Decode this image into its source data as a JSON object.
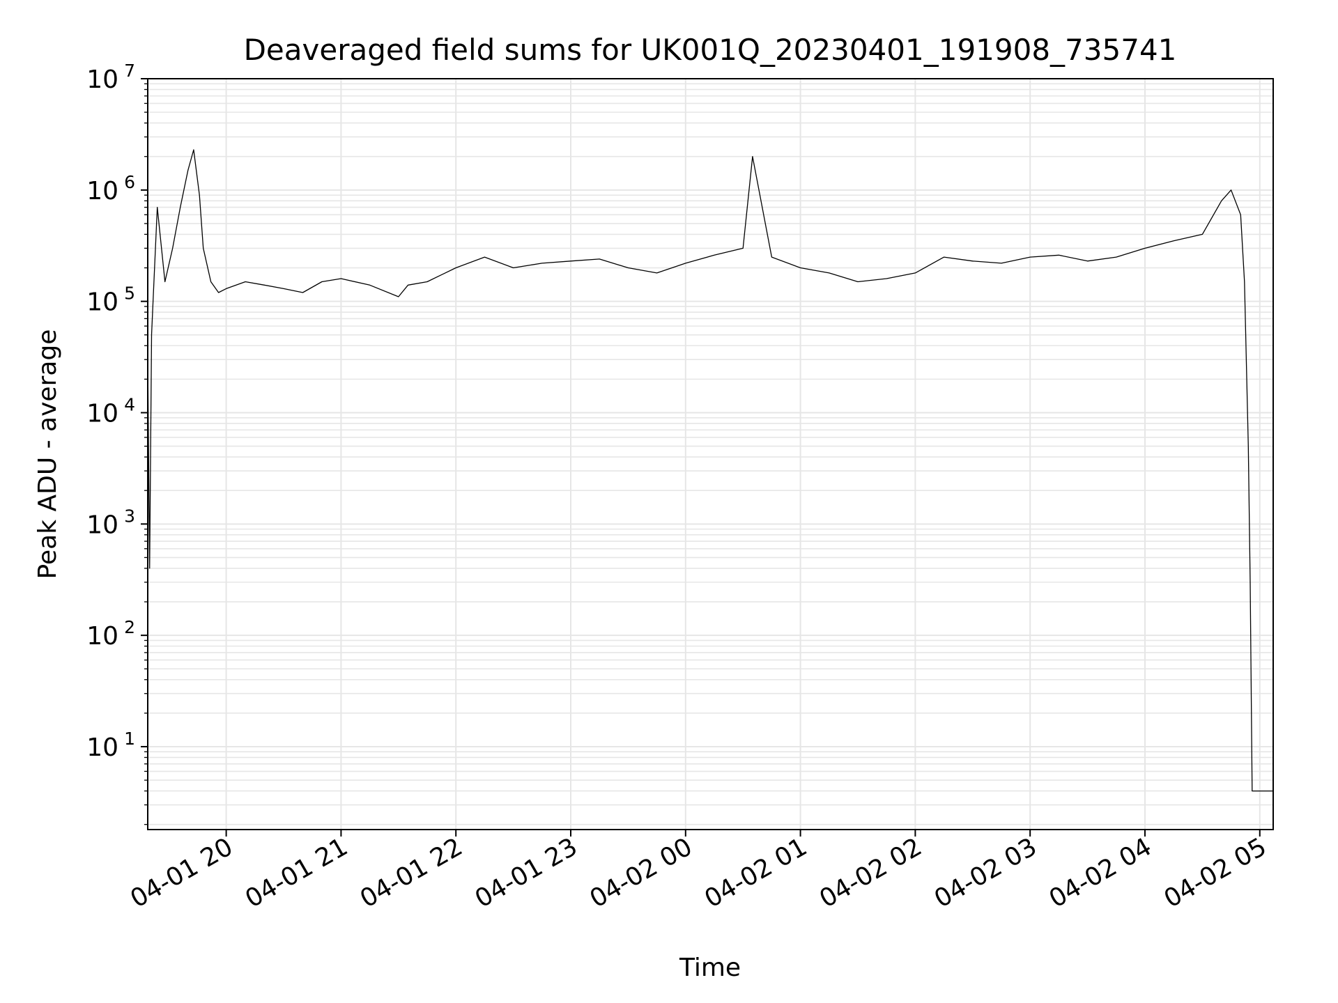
{
  "chart_data": {
    "type": "line",
    "title": "Deaveraged field sums for UK001Q_20230401_191908_735741",
    "xlabel": "Time",
    "ylabel": "Peak ADU - average",
    "yscale": "log",
    "ylim": [
      1.8,
      10000000
    ],
    "xlim": [
      "04-01 19:19",
      "04-02 05:07"
    ],
    "x_ticks": [
      "04-01 20",
      "04-01 21",
      "04-01 22",
      "04-01 23",
      "04-02 00",
      "04-02 01",
      "04-02 02",
      "04-02 03",
      "04-02 04",
      "04-02 05"
    ],
    "y_ticks": [
      {
        "base": "10",
        "exp": "1"
      },
      {
        "base": "10",
        "exp": "2"
      },
      {
        "base": "10",
        "exp": "3"
      },
      {
        "base": "10",
        "exp": "4"
      },
      {
        "base": "10",
        "exp": "5"
      },
      {
        "base": "10",
        "exp": "6"
      },
      {
        "base": "10",
        "exp": "7"
      }
    ],
    "grid": true,
    "line_color": "#000000",
    "grid_color": "#e6e6e6",
    "series": [
      {
        "x": [
          "04-01 19:19",
          "04-01 19:20",
          "04-01 19:21",
          "04-01 19:22",
          "04-01 19:24",
          "04-01 19:28",
          "04-01 19:32",
          "04-01 19:36",
          "04-01 19:40",
          "04-01 19:43",
          "04-01 19:46",
          "04-01 19:48",
          "04-01 19:52",
          "04-01 19:56",
          "04-01 20:00",
          "04-01 20:10",
          "04-01 20:20",
          "04-01 20:30",
          "04-01 20:40",
          "04-01 20:50",
          "04-01 21:00",
          "04-01 21:15",
          "04-01 21:30",
          "04-01 21:35",
          "04-01 21:45",
          "04-01 22:00",
          "04-01 22:15",
          "04-01 22:30",
          "04-01 22:45",
          "04-01 23:00",
          "04-01 23:15",
          "04-01 23:30",
          "04-01 23:45",
          "04-02 00:00",
          "04-02 00:15",
          "04-02 00:30",
          "04-02 00:35",
          "04-02 00:45",
          "04-02 01:00",
          "04-02 01:15",
          "04-02 01:30",
          "04-02 01:45",
          "04-02 02:00",
          "04-02 02:15",
          "04-02 02:30",
          "04-02 02:45",
          "04-02 03:00",
          "04-02 03:15",
          "04-02 03:30",
          "04-02 03:45",
          "04-02 04:00",
          "04-02 04:15",
          "04-02 04:30",
          "04-02 04:40",
          "04-02 04:45",
          "04-02 04:50",
          "04-02 04:52",
          "04-02 04:54",
          "04-02 04:55",
          "04-02 04:56",
          "04-02 04:57",
          "04-02 05:00",
          "04-02 05:07"
        ],
        "y": [
          30000,
          400,
          50000,
          120000,
          700000,
          150000,
          300000,
          700000,
          1500000,
          2300000,
          900000,
          300000,
          150000,
          120000,
          130000,
          150000,
          140000,
          130000,
          120000,
          150000,
          160000,
          140000,
          110000,
          140000,
          150000,
          200000,
          250000,
          200000,
          220000,
          230000,
          240000,
          200000,
          180000,
          220000,
          260000,
          300000,
          2000000,
          250000,
          200000,
          180000,
          150000,
          160000,
          180000,
          250000,
          230000,
          220000,
          250000,
          260000,
          230000,
          250000,
          300000,
          350000,
          400000,
          800000,
          1000000,
          600000,
          150000,
          5000,
          300,
          4,
          4,
          4,
          4
        ]
      }
    ]
  }
}
